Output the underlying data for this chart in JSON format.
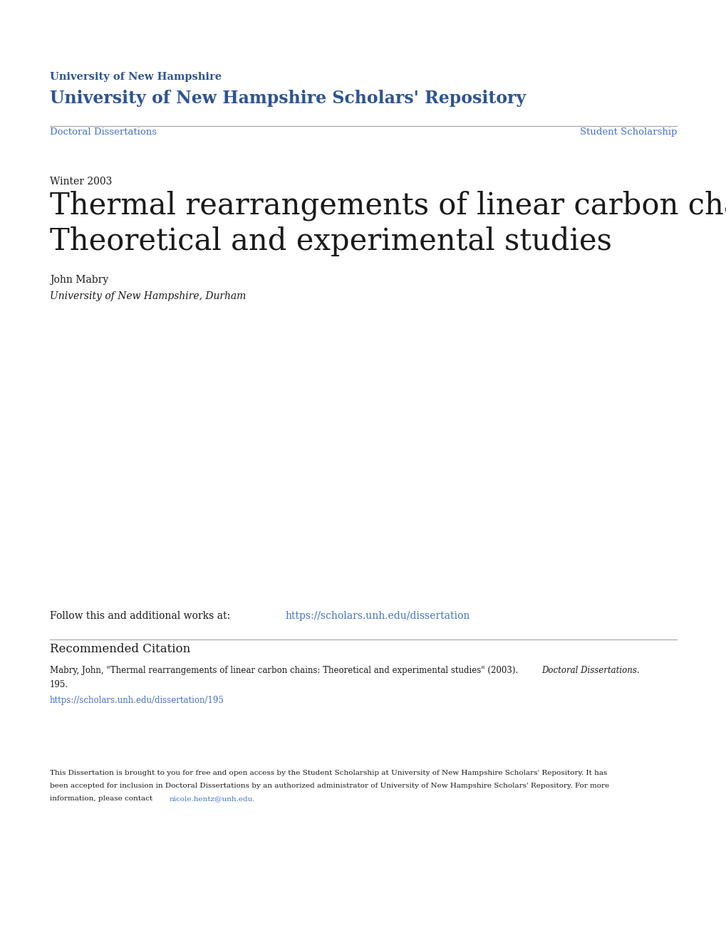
{
  "bg_color": "#ffffff",
  "blue_color": "#2e5493",
  "link_color": "#4472c4",
  "black_color": "#1a1a1a",
  "gray_color": "#aaaaaa",
  "header_line1": "University of New Hampshire",
  "header_line2": "University of New Hampshire Scholars' Repository",
  "nav_left": "Doctoral Dissertations",
  "nav_right": "Student Scholarship",
  "season_year": "Winter 2003",
  "title_line1": "Thermal rearrangements of linear carbon chains:",
  "title_line2": "Theoretical and experimental studies",
  "author": "John Mabry",
  "affiliation": "University of New Hampshire, Durham",
  "follow_text": "Follow this and additional works at: ",
  "follow_link": "https://scholars.unh.edu/dissertation",
  "rec_citation_header": "Recommended Citation",
  "citation_main": "Mabry, John, \"Thermal rearrangements of linear carbon chains: Theoretical and experimental studies\" (2003). ",
  "citation_italic": "Doctoral Dissertations.",
  "citation_num": "195.",
  "citation_url": "https://scholars.unh.edu/dissertation/195",
  "disc_line1": "This Dissertation is brought to you for free and open access by the Student Scholarship at University of New Hampshire Scholars' Repository. It has",
  "disc_line2": "been accepted for inclusion in Doctoral Dissertations by an authorized administrator of University of New Hampshire Scholars' Repository. For more",
  "disc_line3_pre": "information, please contact ",
  "disc_email": "nicole.hentz@unh.edu",
  "disc_end": "."
}
